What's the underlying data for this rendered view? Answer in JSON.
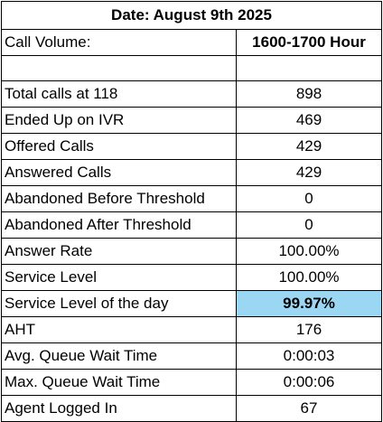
{
  "title": "Date: August 9th 2025",
  "header": {
    "label": "Call Volume:",
    "value": "1600-1700 Hour"
  },
  "rows": [
    {
      "label": "Total calls at 118",
      "value": "898"
    },
    {
      "label": "Ended Up on IVR",
      "value": "469"
    },
    {
      "label": "Offered Calls",
      "value": "429"
    },
    {
      "label": "Answered Calls",
      "value": "429"
    },
    {
      "label": "Abandoned Before Threshold",
      "value": "0"
    },
    {
      "label": "Abandoned After Threshold",
      "value": "0"
    },
    {
      "label": "Answer Rate",
      "value": "100.00%"
    },
    {
      "label": "Service Level",
      "value": "100.00%"
    },
    {
      "label": "Service Level of the day",
      "value": "99.97%",
      "highlight_color": "#9bd7f2"
    },
    {
      "label": "AHT",
      "value": "176"
    },
    {
      "label": "Avg. Queue Wait Time",
      "value": "0:00:03"
    },
    {
      "label": "Max. Queue Wait Time",
      "value": "0:00:06"
    },
    {
      "label": "Agent Logged In",
      "value": "67"
    }
  ]
}
